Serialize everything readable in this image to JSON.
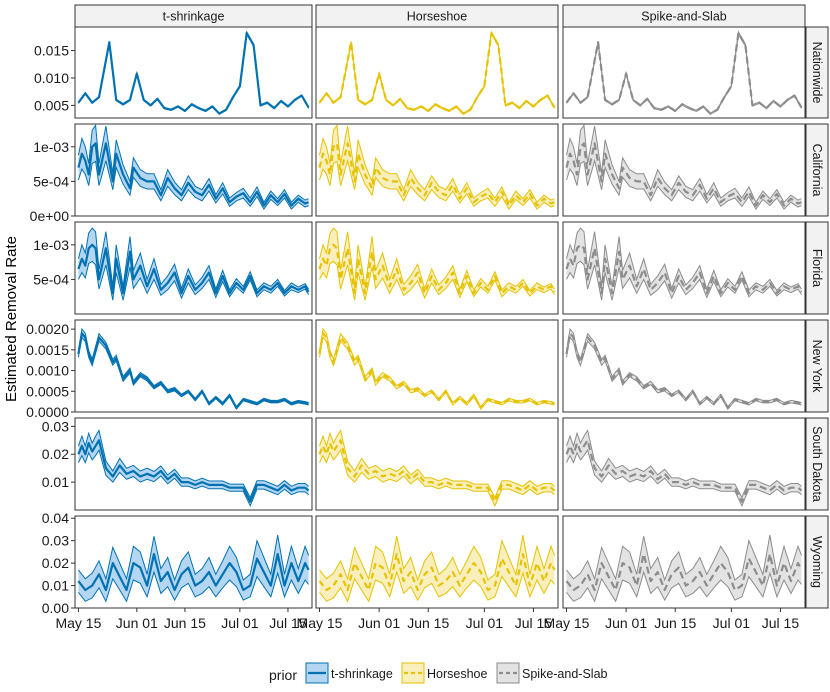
{
  "chart_data": {
    "type": "line",
    "ylabel": "Estimated Removal Rate",
    "xlabel": "",
    "facet_columns": [
      "t-shrinkage",
      "Horseshoe",
      "Spike-and-Slab"
    ],
    "facet_rows": [
      "Nationwide",
      "California",
      "Florida",
      "New York",
      "South Dakota",
      "Wyoming"
    ],
    "x_ticks": [
      "May 15",
      "Jun 01",
      "Jun 15",
      "Jul 01",
      "Jul 15"
    ],
    "x_tick_days": [
      0,
      17,
      31,
      47,
      61
    ],
    "x_range_days": [
      -1,
      68
    ],
    "legend": {
      "title": "prior",
      "position": "bottom",
      "entries": [
        "t-shrinkage",
        "Horseshoe",
        "Spike-and-Slab"
      ]
    },
    "series_style": {
      "t-shrinkage": {
        "line": "#0072B2",
        "fill": "#9CC8EC",
        "dash": "none"
      },
      "Horseshoe": {
        "line": "#E6C200",
        "fill": "#F7E9A6",
        "dash": "6,4"
      },
      "Spike-and-Slab": {
        "line": "#8C8C8C",
        "fill": "#DADADA",
        "dash": "7,4"
      }
    },
    "rows": [
      {
        "name": "Nationwide",
        "ylim": [
          0.0027,
          0.0193
        ],
        "y_ticks": [
          0.005,
          0.01,
          0.015
        ],
        "y_tick_labels": [
          "0.005",
          "0.010",
          "0.015"
        ],
        "x": [
          0,
          2,
          4,
          6,
          9,
          11,
          13,
          15,
          17,
          19,
          21,
          23,
          25,
          27,
          29,
          31,
          33,
          35,
          37,
          39,
          41,
          43,
          45,
          47,
          49,
          51,
          53,
          55,
          57,
          59,
          61,
          63,
          65,
          67
        ],
        "mean": [
          0.0055,
          0.0072,
          0.0055,
          0.0065,
          0.0165,
          0.006,
          0.0052,
          0.006,
          0.0108,
          0.006,
          0.005,
          0.0062,
          0.0045,
          0.0042,
          0.0048,
          0.004,
          0.0052,
          0.0045,
          0.004,
          0.0048,
          0.0035,
          0.0042,
          0.0065,
          0.0085,
          0.0182,
          0.016,
          0.005,
          0.0055,
          0.0045,
          0.0058,
          0.0048,
          0.006,
          0.0068,
          0.0046
        ],
        "halfwidth": [
          0.00012,
          0.00012,
          0.00012,
          0.00012,
          0.0002,
          0.00012,
          0.00012,
          0.00012,
          0.00015,
          0.00012,
          0.00012,
          0.00012,
          0.00012,
          0.00012,
          0.00012,
          0.00012,
          0.00012,
          0.00012,
          0.00012,
          0.00012,
          0.00012,
          0.00012,
          0.00012,
          0.00012,
          0.0002,
          0.0002,
          0.00012,
          0.00012,
          0.00012,
          0.00012,
          0.00012,
          0.00012,
          0.00012,
          0.00012
        ]
      },
      {
        "name": "California",
        "ylim": [
          0,
          0.00133
        ],
        "y_ticks": [
          0,
          0.0005,
          0.001
        ],
        "y_tick_labels": [
          "0e+00",
          "5e-04",
          "1e-03"
        ],
        "x": [
          0,
          1,
          2,
          3,
          4,
          5,
          6,
          8,
          10,
          11,
          13,
          15,
          16,
          18,
          20,
          22,
          24,
          26,
          28,
          30,
          32,
          34,
          36,
          38,
          40,
          42,
          44,
          46,
          48,
          50,
          52,
          54,
          56,
          58,
          60,
          62,
          64,
          66,
          67
        ],
        "mean": [
          0.0007,
          0.0009,
          0.0008,
          0.0006,
          0.001,
          0.00105,
          0.0006,
          0.00105,
          0.0005,
          0.0009,
          0.0006,
          0.0004,
          0.0007,
          0.00055,
          0.0005,
          0.0005,
          0.0003,
          0.00055,
          0.0004,
          0.0003,
          0.00048,
          0.00035,
          0.0003,
          0.00045,
          0.00025,
          0.0004,
          0.0002,
          0.00028,
          0.00033,
          0.0002,
          0.00035,
          0.00015,
          0.0003,
          0.0002,
          0.00032,
          0.00015,
          0.00025,
          0.00018,
          0.0002
        ],
        "halfwidth": [
          0.00018,
          0.00022,
          0.0002,
          0.00016,
          0.00024,
          0.00026,
          0.00016,
          0.00025,
          0.00012,
          0.0002,
          0.00014,
          0.0001,
          0.00014,
          0.00012,
          0.00011,
          0.00011,
          8e-05,
          0.00012,
          9e-05,
          8e-05,
          0.0001,
          8e-05,
          8e-05,
          9e-05,
          6e-05,
          8e-05,
          6e-05,
          6e-05,
          7e-05,
          6e-05,
          7e-05,
          5e-05,
          6e-05,
          5e-05,
          6e-05,
          5e-05,
          5e-05,
          5e-05,
          5e-05
        ]
      },
      {
        "name": "Florida",
        "ylim": [
          0,
          0.00133
        ],
        "y_ticks": [
          0.0005,
          0.001
        ],
        "y_tick_labels": [
          "5e-04",
          "1e-03"
        ],
        "x": [
          0,
          1,
          2,
          3,
          4,
          5,
          6,
          8,
          10,
          11,
          13,
          15,
          16,
          18,
          20,
          22,
          24,
          26,
          28,
          30,
          32,
          34,
          36,
          38,
          40,
          42,
          44,
          46,
          48,
          50,
          52,
          54,
          56,
          58,
          60,
          62,
          64,
          66,
          67
        ],
        "mean": [
          0.00065,
          0.0008,
          0.0007,
          0.00095,
          0.001,
          0.00095,
          0.0005,
          0.00095,
          0.0003,
          0.0008,
          0.0003,
          0.0009,
          0.0005,
          0.0007,
          0.0004,
          0.00065,
          0.00035,
          0.00045,
          0.0006,
          0.0003,
          0.00055,
          0.00035,
          0.00045,
          0.0006,
          0.0003,
          0.00055,
          0.0003,
          0.00045,
          0.00035,
          0.00055,
          0.0003,
          0.0004,
          0.00035,
          0.00045,
          0.0003,
          0.0004,
          0.00035,
          0.0004,
          0.00032
        ],
        "halfwidth": [
          0.00015,
          0.0002,
          0.00018,
          0.00022,
          0.00024,
          0.00024,
          0.00014,
          0.00024,
          0.0001,
          0.0002,
          0.0001,
          0.00022,
          0.00013,
          0.00018,
          0.0001,
          0.00015,
          8e-05,
          0.0001,
          0.00012,
          7e-05,
          0.0001,
          7e-05,
          8e-05,
          0.0001,
          6e-05,
          8e-05,
          5e-05,
          6e-05,
          5e-05,
          6e-05,
          5e-05,
          5e-05,
          5e-05,
          5e-05,
          4e-05,
          5e-05,
          4e-05,
          4e-05,
          4e-05
        ]
      },
      {
        "name": "New York",
        "ylim": [
          0,
          0.00222
        ],
        "y_ticks": [
          0,
          0.0005,
          0.001,
          0.0015,
          0.002
        ],
        "y_tick_labels": [
          "0.0000",
          "0.0005",
          "0.0010",
          "0.0015",
          "0.0020"
        ],
        "x": [
          0,
          1,
          2,
          3,
          4,
          6,
          8,
          10,
          11,
          13,
          15,
          16,
          18,
          20,
          22,
          24,
          26,
          28,
          30,
          32,
          34,
          36,
          38,
          40,
          42,
          44,
          46,
          48,
          50,
          52,
          54,
          56,
          58,
          60,
          62,
          64,
          66,
          67
        ],
        "mean": [
          0.0014,
          0.0019,
          0.0018,
          0.0014,
          0.0012,
          0.0018,
          0.0016,
          0.0012,
          0.0013,
          0.0008,
          0.001,
          0.0007,
          0.0009,
          0.0008,
          0.0006,
          0.0007,
          0.0005,
          0.00055,
          0.0004,
          0.0005,
          0.0003,
          0.0005,
          0.0002,
          0.00035,
          0.0002,
          0.0004,
          0.0001,
          0.0003,
          0.00025,
          0.0002,
          0.0003,
          0.00025,
          0.00025,
          0.0003,
          0.0002,
          0.00025,
          0.00022,
          0.0002
        ],
        "halfwidth": [
          8e-05,
          0.0001,
          0.0001,
          8e-05,
          8e-05,
          9e-05,
          8e-05,
          7e-05,
          7e-05,
          6e-05,
          6e-05,
          5e-05,
          5e-05,
          5e-05,
          4e-05,
          4e-05,
          4e-05,
          4e-05,
          3e-05,
          3e-05,
          3e-05,
          3e-05,
          3e-05,
          3e-05,
          3e-05,
          3e-05,
          3e-05,
          3e-05,
          3e-05,
          3e-05,
          3e-05,
          3e-05,
          3e-05,
          3e-05,
          3e-05,
          3e-05,
          3e-05,
          3e-05
        ]
      },
      {
        "name": "South Dakota",
        "ylim": [
          0,
          0.033
        ],
        "y_ticks": [
          0.01,
          0.02,
          0.03
        ],
        "y_tick_labels": [
          "0.01",
          "0.02",
          "0.03"
        ],
        "x": [
          0,
          1,
          2,
          3,
          4,
          5,
          6,
          8,
          10,
          12,
          14,
          16,
          18,
          20,
          22,
          24,
          26,
          28,
          30,
          32,
          34,
          36,
          38,
          40,
          42,
          44,
          46,
          48,
          50,
          52,
          54,
          56,
          58,
          60,
          62,
          64,
          66,
          67
        ],
        "mean": [
          0.02,
          0.023,
          0.02,
          0.024,
          0.021,
          0.023,
          0.025,
          0.015,
          0.012,
          0.016,
          0.013,
          0.014,
          0.012,
          0.013,
          0.012,
          0.014,
          0.011,
          0.013,
          0.01,
          0.01,
          0.009,
          0.01,
          0.009,
          0.009,
          0.009,
          0.008,
          0.008,
          0.008,
          0.003,
          0.009,
          0.009,
          0.008,
          0.007,
          0.009,
          0.007,
          0.008,
          0.008,
          0.007
        ],
        "halfwidth": [
          0.003,
          0.0035,
          0.003,
          0.0035,
          0.003,
          0.0035,
          0.0035,
          0.0025,
          0.002,
          0.0025,
          0.002,
          0.002,
          0.002,
          0.002,
          0.0018,
          0.0018,
          0.0016,
          0.0016,
          0.0015,
          0.0015,
          0.0014,
          0.0014,
          0.0014,
          0.0014,
          0.0014,
          0.0013,
          0.0013,
          0.0013,
          0.0015,
          0.0015,
          0.0015,
          0.0015,
          0.0015,
          0.0015,
          0.0015,
          0.0015,
          0.0015,
          0.0015
        ]
      },
      {
        "name": "Wyoming",
        "ylim": [
          0,
          0.041
        ],
        "y_ticks": [
          0,
          0.01,
          0.02,
          0.03,
          0.04
        ],
        "y_tick_labels": [
          "0.00",
          "0.01",
          "0.02",
          "0.03",
          "0.04"
        ],
        "x": [
          0,
          2,
          4,
          6,
          8,
          10,
          12,
          14,
          16,
          18,
          20,
          22,
          24,
          26,
          28,
          30,
          32,
          34,
          36,
          38,
          40,
          42,
          44,
          46,
          48,
          50,
          52,
          54,
          56,
          58,
          60,
          62,
          64,
          66,
          67
        ],
        "mean": [
          0.012,
          0.008,
          0.01,
          0.015,
          0.008,
          0.02,
          0.014,
          0.008,
          0.02,
          0.018,
          0.01,
          0.024,
          0.012,
          0.016,
          0.008,
          0.015,
          0.018,
          0.01,
          0.012,
          0.016,
          0.01,
          0.015,
          0.02,
          0.016,
          0.008,
          0.01,
          0.022,
          0.016,
          0.01,
          0.024,
          0.01,
          0.02,
          0.012,
          0.02,
          0.017
        ],
        "halfwidth": [
          0.005,
          0.005,
          0.0055,
          0.006,
          0.005,
          0.007,
          0.006,
          0.005,
          0.0075,
          0.007,
          0.005,
          0.008,
          0.0055,
          0.0065,
          0.0045,
          0.006,
          0.007,
          0.005,
          0.0055,
          0.0065,
          0.005,
          0.006,
          0.0075,
          0.0065,
          0.0045,
          0.005,
          0.008,
          0.0065,
          0.005,
          0.0085,
          0.005,
          0.0075,
          0.0055,
          0.0075,
          0.0065
        ]
      }
    ]
  }
}
